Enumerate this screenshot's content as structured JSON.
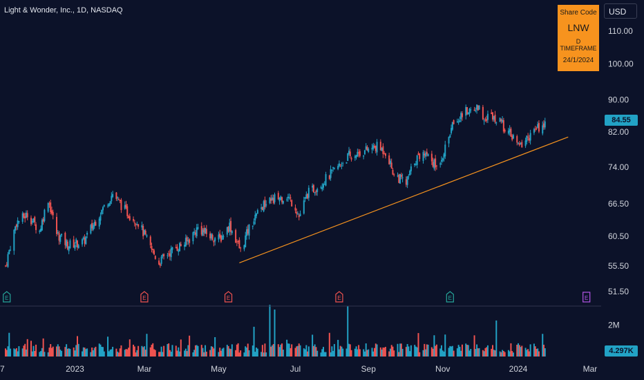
{
  "header": {
    "title": "Light & Wonder, Inc., 1D, NASDAQ",
    "currency": "USD"
  },
  "info_box": {
    "label": "Share Code",
    "ticker": "LNW",
    "timeframe": "D TIMEFRAME",
    "date": "24/1/2024"
  },
  "price_tag": "84.55",
  "volume_tag": "4.297K",
  "colors": {
    "background": "#0c1229",
    "up": "#22a2c5",
    "down": "#ef5350",
    "trendline": "#f7931e",
    "info_box": "#f7931e",
    "earnings_green": "#26a69a",
    "earnings_red": "#ef5350",
    "earnings_purple": "#b455e6"
  },
  "earnings_markers": [
    {
      "date": "2022-11-08",
      "label": "E",
      "color": "green"
    },
    {
      "date": "2023-03-01",
      "label": "E",
      "color": "red"
    },
    {
      "date": "2023-05-09",
      "label": "E",
      "color": "red"
    },
    {
      "date": "2023-08-08",
      "label": "E",
      "color": "red"
    },
    {
      "date": "2023-11-07",
      "label": "E",
      "color": "green"
    },
    {
      "date": "2024-02-27",
      "label": "E",
      "color": "purple"
    }
  ],
  "chart_data": {
    "type": "candlestick",
    "title": "Light & Wonder, Inc., 1D, NASDAQ",
    "x_tick_labels": [
      "7",
      "2023",
      "Mar",
      "May",
      "Jul",
      "Sep",
      "Nov",
      "2024",
      "Mar"
    ],
    "x_tick_dates": [
      "2022-11-07",
      "2023-01-03",
      "2023-03-01",
      "2023-05-01",
      "2023-07-03",
      "2023-09-01",
      "2023-11-01",
      "2024-01-02",
      "2024-03-01"
    ],
    "price_axis": {
      "scale": "log",
      "range": [
        49.5,
        123
      ],
      "ticks": [
        "110.00",
        "100.00",
        "90.00",
        "82.00",
        "74.00",
        "66.50",
        "60.50",
        "55.50",
        "51.50"
      ]
    },
    "volume_axis": {
      "range": [
        0,
        3600000
      ],
      "ticks": [
        "2M"
      ]
    },
    "last_price": 84.55,
    "last_volume": "4.297K",
    "trendline": {
      "start": {
        "date": "2023-05-18",
        "price": 56.0
      },
      "end": {
        "date": "2024-02-12",
        "price": 80.8
      }
    },
    "price_path": [
      [
        "2022-11-07",
        55.5
      ],
      [
        "2022-11-16",
        63
      ],
      [
        "2022-11-25",
        64.5
      ],
      [
        "2022-12-05",
        61.5
      ],
      [
        "2022-12-12",
        67.5
      ],
      [
        "2022-12-19",
        61
      ],
      [
        "2022-12-28",
        59
      ],
      [
        "2023-01-10",
        59.5
      ],
      [
        "2023-01-23",
        64.5
      ],
      [
        "2023-02-03",
        68.5
      ],
      [
        "2023-02-14",
        65
      ],
      [
        "2023-02-24",
        63
      ],
      [
        "2023-03-06",
        58.5
      ],
      [
        "2023-03-13",
        56
      ],
      [
        "2023-03-20",
        57.5
      ],
      [
        "2023-03-27",
        58.5
      ],
      [
        "2023-04-05",
        59.5
      ],
      [
        "2023-04-14",
        62
      ],
      [
        "2023-04-24",
        60.5
      ],
      [
        "2023-05-02",
        60
      ],
      [
        "2023-05-10",
        62.5
      ],
      [
        "2023-05-16",
        59.5
      ],
      [
        "2023-05-19",
        58
      ],
      [
        "2023-05-26",
        62
      ],
      [
        "2023-06-06",
        66
      ],
      [
        "2023-06-16",
        67.5
      ],
      [
        "2023-06-26",
        68
      ],
      [
        "2023-07-03",
        66
      ],
      [
        "2023-07-06",
        64
      ],
      [
        "2023-07-13",
        68.5
      ],
      [
        "2023-07-24",
        70.5
      ],
      [
        "2023-08-03",
        73
      ],
      [
        "2023-08-16",
        76.5
      ],
      [
        "2023-08-28",
        77.5
      ],
      [
        "2023-09-08",
        78.5
      ],
      [
        "2023-09-15",
        77.5
      ],
      [
        "2023-09-22",
        72.5
      ],
      [
        "2023-10-02",
        70.5
      ],
      [
        "2023-10-09",
        75.5
      ],
      [
        "2023-10-18",
        77.5
      ],
      [
        "2023-10-27",
        74
      ],
      [
        "2023-11-03",
        78
      ],
      [
        "2023-11-10",
        84.5
      ],
      [
        "2023-11-20",
        87
      ],
      [
        "2023-11-30",
        88
      ],
      [
        "2023-12-06",
        85.5
      ],
      [
        "2023-12-13",
        86
      ],
      [
        "2023-12-22",
        83
      ],
      [
        "2024-01-03",
        78.5
      ],
      [
        "2024-01-09",
        80.5
      ],
      [
        "2024-01-17",
        82.5
      ],
      [
        "2024-01-24",
        84.55
      ]
    ]
  }
}
